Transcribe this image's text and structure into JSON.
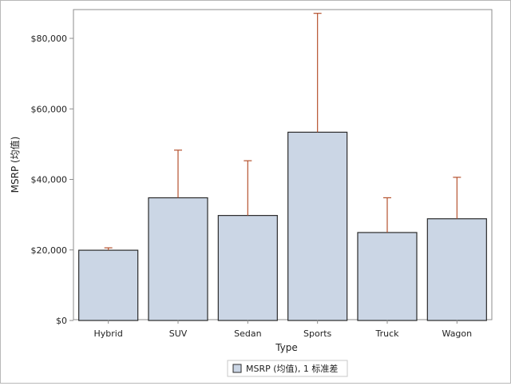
{
  "chart_data": {
    "type": "bar",
    "title": "",
    "xlabel": "Type",
    "ylabel": "MSRP (均值)",
    "categories": [
      "Hybrid",
      "SUV",
      "Sedan",
      "Sports",
      "Truck",
      "Wagon"
    ],
    "series": [
      {
        "name": "MSRP (均值), 1 标准差",
        "values": [
          19920,
          34790,
          29774,
          53387,
          24941,
          28841
        ],
        "error_upper": [
          20600,
          48300,
          45300,
          87100,
          34800,
          40600
        ]
      }
    ],
    "ylim": [
      0,
      88000
    ],
    "yticks": [
      0,
      20000,
      40000,
      60000,
      80000
    ],
    "ytick_labels": [
      "$0",
      "$20,000",
      "$40,000",
      "$60,000",
      "$80,000"
    ],
    "grid": false,
    "legend_position": "bottom-center",
    "colors": {
      "bar_fill": "#cbd6e5",
      "bar_stroke": "#2b2b2b",
      "error_bar": "#b5522f",
      "frame": "#8c8c8c"
    }
  }
}
